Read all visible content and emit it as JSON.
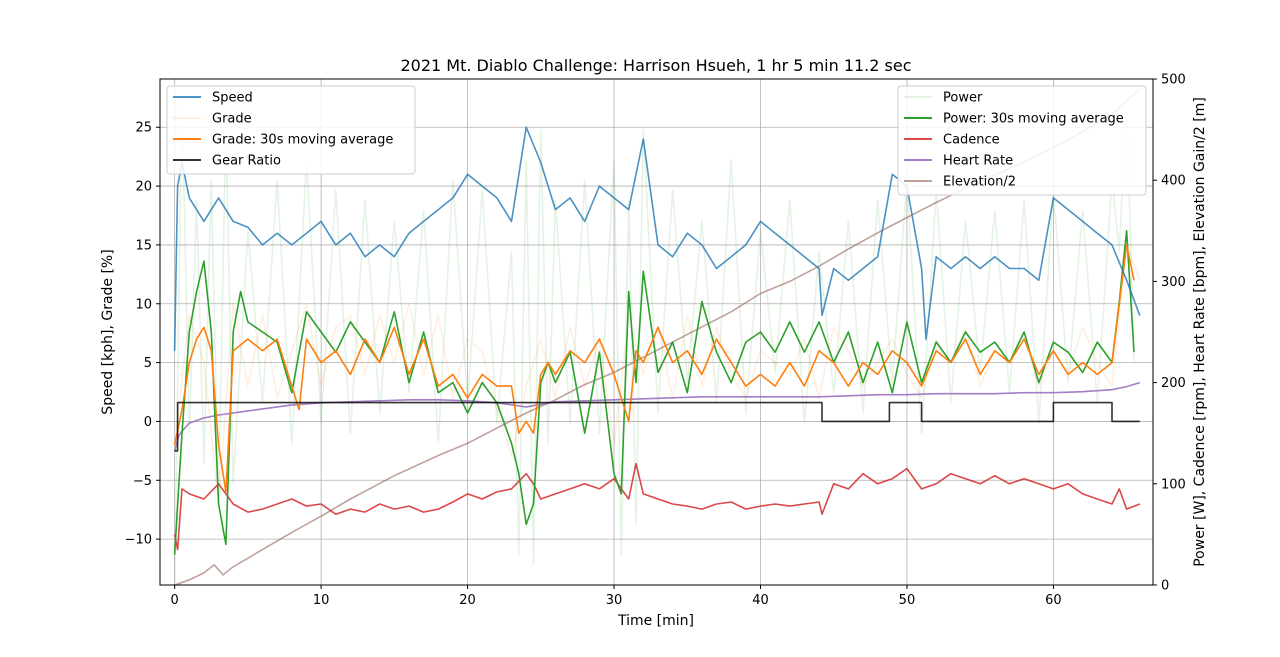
{
  "chart_data": {
    "type": "line",
    "title": "2021 Mt. Diablo Challenge: Harrison Hsueh, 1 hr 5 min 11.2 sec",
    "xlabel": "Time [min]",
    "ylabel_left": "Speed [kph], Grade [%]",
    "ylabel_right": "Power [W], Cadence [rpm], Heart Rate [bpm], Elevation Gain/2 [m]",
    "xlim": [
      -1,
      66.8
    ],
    "ylim_left": [
      -13.9,
      29.1
    ],
    "ylim_right": [
      0,
      500
    ],
    "x_ticks": [
      0,
      10,
      20,
      30,
      40,
      50,
      60
    ],
    "y_ticks_left": [
      -10,
      -5,
      0,
      5,
      10,
      15,
      20,
      25
    ],
    "y_ticks_right": [
      0,
      100,
      200,
      300,
      400,
      500
    ],
    "grid": true,
    "legend_left_position": "upper-left",
    "legend_right_position": "upper-right",
    "series": [
      {
        "name": "Speed",
        "axis": "left",
        "color": "#1f77b4",
        "opacity": 0.8,
        "x": [
          0,
          0.2,
          0.5,
          1,
          1.5,
          2,
          3,
          4,
          5,
          6,
          7,
          8,
          9,
          10,
          11,
          12,
          13,
          14,
          15,
          16,
          17,
          18,
          19,
          20,
          21,
          22,
          23,
          24,
          25,
          26,
          27,
          28,
          29,
          30,
          31,
          32,
          33,
          34,
          35,
          36,
          37,
          38,
          39,
          40,
          41,
          42,
          43,
          44,
          44.2,
          45,
          46,
          47,
          48,
          49,
          50,
          51,
          51.3,
          52,
          53,
          54,
          55,
          56,
          57,
          58,
          59,
          60,
          61,
          62,
          63,
          64,
          65,
          65.9
        ],
        "y": [
          6,
          20,
          22,
          19,
          18,
          17,
          19,
          17,
          16.5,
          15,
          16,
          15,
          16,
          17,
          15,
          16,
          14,
          15,
          14,
          16,
          17,
          18,
          19,
          21,
          20,
          19,
          17,
          25,
          22,
          18,
          19,
          17,
          20,
          19,
          18,
          24,
          15,
          14,
          16,
          15,
          13,
          14,
          15,
          17,
          16,
          15,
          14,
          13,
          9,
          13,
          12,
          13,
          14,
          21,
          20,
          13,
          7,
          14,
          13,
          14,
          13,
          14,
          13,
          13,
          12,
          19,
          18,
          17,
          16,
          15,
          12,
          9
        ]
      },
      {
        "name": "Grade",
        "axis": "left",
        "color": "#ff7f0e",
        "opacity": 0.12,
        "x": [
          0,
          1,
          2,
          3,
          4,
          5,
          6,
          7,
          8,
          9,
          10,
          11,
          12,
          13,
          14,
          15,
          16,
          17,
          18,
          19,
          20,
          21,
          22,
          23,
          24,
          25,
          26,
          27,
          28,
          29,
          30,
          31,
          32,
          33,
          34,
          35,
          36,
          37,
          38,
          39,
          40,
          41,
          42,
          43,
          44,
          45,
          46,
          47,
          48,
          49,
          50,
          51,
          52,
          53,
          54,
          55,
          56,
          57,
          58,
          59,
          60,
          61,
          62,
          63,
          64,
          65,
          65.9
        ],
        "y": [
          -2,
          9,
          5,
          -7,
          10,
          3,
          9,
          2,
          6,
          10,
          3,
          8,
          9,
          4,
          9,
          5,
          10,
          4,
          9,
          2,
          7,
          6,
          1,
          -3,
          3,
          7,
          2,
          8,
          3,
          7,
          -2,
          9,
          4,
          8,
          2,
          9,
          3,
          8,
          4,
          2,
          6,
          5,
          4,
          7,
          2,
          8,
          6,
          3,
          5,
          7,
          4,
          2,
          7,
          5,
          8,
          3,
          6,
          5,
          7,
          3,
          6,
          4,
          8,
          5,
          3,
          15,
          12
        ]
      },
      {
        "name": "Grade: 30s moving average",
        "axis": "left",
        "color": "#ff7f0e",
        "opacity": 1,
        "x": [
          0,
          0.5,
          1,
          1.5,
          2,
          2.5,
          3,
          3.5,
          4,
          5,
          6,
          7,
          8,
          8.5,
          9,
          10,
          11,
          12,
          13,
          14,
          15,
          16,
          17,
          18,
          19,
          20,
          21,
          22,
          23,
          23.5,
          24,
          24.5,
          25,
          25.5,
          26,
          27,
          28,
          29,
          30,
          30.5,
          31,
          31.5,
          32,
          33,
          34,
          35,
          36,
          37,
          38,
          39,
          40,
          41,
          42,
          43,
          44,
          45,
          46,
          47,
          48,
          49,
          50,
          51,
          52,
          53,
          54,
          55,
          56,
          57,
          58,
          59,
          60,
          61,
          62,
          63,
          64,
          64.5,
          65,
          65.5
        ],
        "y": [
          -2,
          1,
          5,
          7,
          8,
          6,
          -2,
          -6,
          6,
          7,
          6,
          7,
          3,
          1,
          7,
          5,
          6,
          4,
          7,
          5,
          8,
          4,
          7,
          3,
          4,
          2,
          4,
          3,
          3,
          -1,
          0,
          -1,
          4,
          5,
          4,
          6,
          5,
          7,
          4,
          2,
          0,
          6,
          5,
          8,
          5,
          6,
          4,
          7,
          5,
          3,
          4,
          3,
          5,
          3,
          6,
          5,
          3,
          5,
          4,
          6,
          5,
          3,
          6,
          5,
          7,
          4,
          6,
          5,
          7,
          4,
          6,
          4,
          5,
          4,
          5,
          10,
          15,
          12
        ]
      },
      {
        "name": "Gear Ratio",
        "axis": "left",
        "color": "#000000",
        "opacity": 0.8,
        "step": true,
        "x": [
          0,
          0.2,
          0.2,
          44.2,
          44.2,
          48.8,
          48.8,
          51.0,
          51.0,
          60,
          60,
          64,
          64,
          65.9
        ],
        "y": [
          -2.5,
          -2.5,
          1.6,
          1.6,
          0,
          0,
          1.6,
          1.6,
          0,
          0,
          1.6,
          1.6,
          0,
          0
        ]
      },
      {
        "name": "Power",
        "axis": "right",
        "color": "#2ca02c",
        "opacity": 0.12,
        "x": [
          0,
          0.5,
          1,
          1.5,
          2,
          2.5,
          3,
          3.5,
          4,
          5,
          6,
          7,
          8,
          9,
          10,
          11,
          12,
          13,
          14,
          15,
          16,
          17,
          18,
          19,
          20,
          21,
          22,
          23,
          23.5,
          24,
          24.5,
          25,
          25.5,
          26,
          27,
          28,
          29,
          30,
          30.5,
          31,
          31.5,
          32,
          33,
          34,
          35,
          36,
          37,
          38,
          39,
          40,
          41,
          42,
          43,
          44,
          45,
          46,
          47,
          48,
          49,
          50,
          51,
          52,
          53,
          54,
          55,
          56,
          57,
          58,
          59,
          60,
          61,
          62,
          63,
          64,
          64.5,
          65,
          65.5
        ],
        "y": [
          0,
          480,
          150,
          380,
          120,
          400,
          80,
          460,
          100,
          350,
          180,
          400,
          140,
          420,
          160,
          390,
          150,
          380,
          170,
          360,
          190,
          370,
          140,
          400,
          180,
          390,
          160,
          330,
          30,
          420,
          20,
          450,
          140,
          380,
          160,
          400,
          150,
          420,
          30,
          380,
          60,
          450,
          170,
          390,
          200,
          360,
          180,
          420,
          170,
          350,
          210,
          380,
          160,
          330,
          190,
          360,
          170,
          380,
          200,
          400,
          150,
          390,
          180,
          360,
          210,
          370,
          190,
          380,
          160,
          390,
          200,
          370,
          180,
          400,
          330,
          480,
          220
        ]
      },
      {
        "name": "Power: 30s moving average",
        "axis": "right",
        "color": "#2ca02c",
        "opacity": 1,
        "x": [
          0,
          0.5,
          1,
          1.5,
          2,
          2.5,
          3,
          3.5,
          4,
          4.5,
          5,
          6,
          7,
          8,
          9,
          10,
          11,
          12,
          13,
          14,
          15,
          16,
          17,
          18,
          19,
          20,
          21,
          22,
          23,
          23.5,
          24,
          24.5,
          25,
          25.5,
          26,
          27,
          28,
          29,
          30,
          30.5,
          31,
          31.5,
          32,
          33,
          34,
          35,
          36,
          37,
          38,
          39,
          40,
          41,
          42,
          43,
          44,
          45,
          46,
          47,
          48,
          49,
          50,
          51,
          52,
          53,
          54,
          55,
          56,
          57,
          58,
          59,
          60,
          61,
          62,
          63,
          64,
          64.5,
          65,
          65.5
        ],
        "y": [
          30,
          150,
          250,
          290,
          320,
          250,
          80,
          40,
          250,
          290,
          260,
          250,
          240,
          190,
          270,
          250,
          230,
          260,
          240,
          220,
          270,
          200,
          250,
          190,
          200,
          170,
          200,
          180,
          140,
          110,
          60,
          80,
          200,
          220,
          200,
          230,
          150,
          230,
          110,
          90,
          290,
          200,
          310,
          210,
          240,
          190,
          280,
          230,
          200,
          240,
          250,
          230,
          260,
          230,
          260,
          220,
          250,
          200,
          240,
          190,
          260,
          200,
          240,
          220,
          250,
          230,
          240,
          220,
          250,
          200,
          240,
          230,
          210,
          240,
          220,
          280,
          350,
          230
        ]
      },
      {
        "name": "Cadence",
        "axis": "right",
        "color": "#d62728",
        "opacity": 0.85,
        "x": [
          0,
          0.2,
          0.5,
          1,
          2,
          3,
          4,
          5,
          6,
          7,
          8,
          9,
          10,
          11,
          12,
          13,
          14,
          15,
          16,
          17,
          18,
          19,
          20,
          21,
          22,
          23,
          24,
          24.5,
          25,
          26,
          27,
          28,
          29,
          30,
          31,
          31.5,
          32,
          33,
          34,
          35,
          36,
          37,
          38,
          39,
          40,
          41,
          42,
          43,
          44,
          44.2,
          45,
          46,
          47,
          48,
          49,
          50,
          51,
          52,
          53,
          54,
          55,
          56,
          57,
          58,
          59,
          60,
          61,
          62,
          63,
          64,
          64.5,
          65,
          65.9
        ],
        "y": [
          50,
          35,
          95,
          90,
          85,
          100,
          80,
          72,
          75,
          80,
          85,
          78,
          80,
          70,
          75,
          72,
          80,
          75,
          78,
          72,
          75,
          82,
          90,
          85,
          92,
          95,
          110,
          100,
          85,
          90,
          95,
          100,
          95,
          105,
          85,
          120,
          90,
          85,
          80,
          78,
          75,
          80,
          82,
          75,
          78,
          80,
          78,
          80,
          82,
          70,
          100,
          95,
          110,
          100,
          105,
          115,
          95,
          100,
          110,
          105,
          100,
          108,
          100,
          105,
          100,
          95,
          100,
          90,
          85,
          80,
          95,
          75,
          80
        ]
      },
      {
        "name": "Heart Rate",
        "axis": "right",
        "color": "#9467bd",
        "opacity": 0.85,
        "x": [
          0,
          0.3,
          0.5,
          1,
          2,
          3,
          4,
          5,
          6,
          7,
          8,
          9,
          10,
          12,
          14,
          16,
          18,
          20,
          22,
          24,
          26,
          28,
          30,
          32,
          34,
          36,
          38,
          40,
          42,
          44,
          46,
          48,
          50,
          52,
          54,
          56,
          58,
          60,
          62,
          64,
          65,
          65.9
        ],
        "y": [
          132,
          148,
          152,
          160,
          165,
          168,
          170,
          172,
          174,
          176,
          178,
          179,
          180,
          181,
          182,
          183,
          183,
          182,
          180,
          176,
          181,
          182,
          183,
          184,
          185,
          186,
          186,
          186,
          186,
          186,
          187,
          188,
          188,
          189,
          189,
          189,
          190,
          190,
          191,
          193,
          196,
          200
        ]
      },
      {
        "name": "Elevation/2",
        "axis": "right",
        "color": "#8c564b",
        "opacity": 0.55,
        "x": [
          0,
          1,
          2,
          2.7,
          3.3,
          4,
          6,
          8,
          10,
          12,
          15,
          18,
          20,
          22,
          24,
          26,
          28,
          30,
          32,
          34,
          36,
          38,
          40,
          42,
          44,
          46,
          48,
          50,
          52,
          54,
          56,
          58,
          60,
          62,
          64,
          65.9
        ],
        "y": [
          0,
          5,
          12,
          20,
          10,
          18,
          35,
          52,
          68,
          85,
          108,
          128,
          140,
          155,
          170,
          183,
          198,
          210,
          225,
          240,
          255,
          270,
          288,
          300,
          315,
          332,
          348,
          363,
          378,
          392,
          405,
          418,
          432,
          448,
          465,
          490
        ]
      }
    ]
  }
}
